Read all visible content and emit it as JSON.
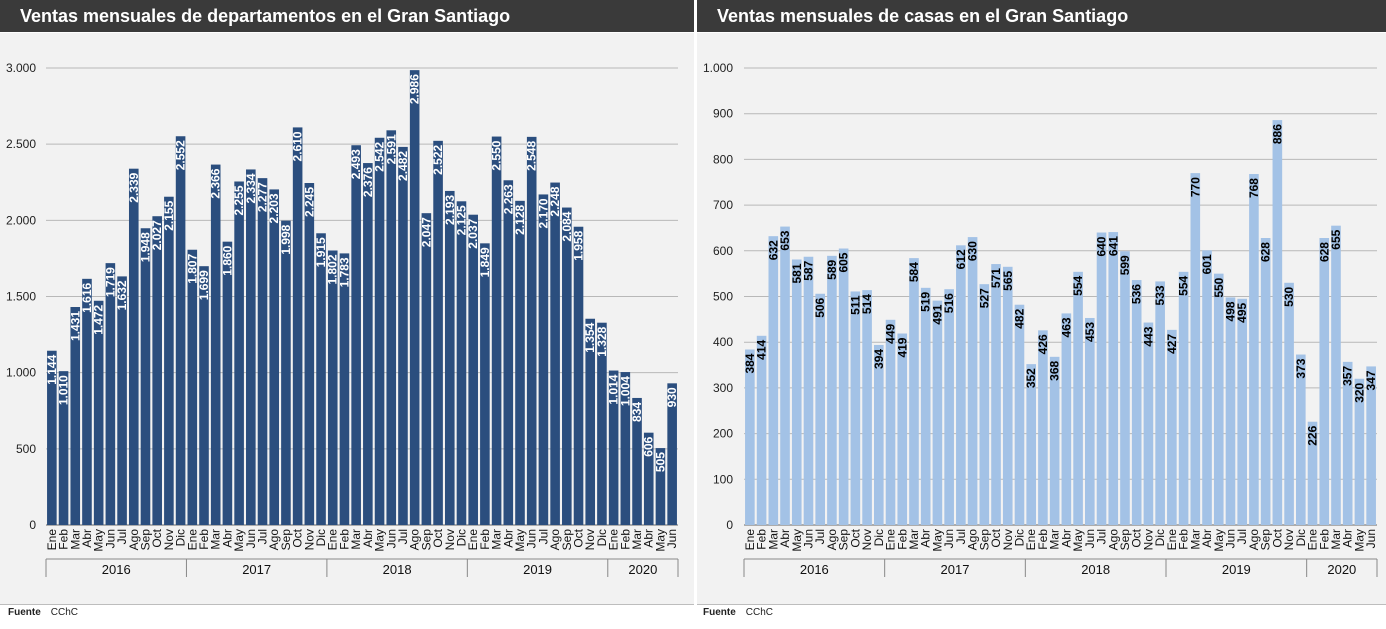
{
  "source": {
    "label": "Fuente",
    "value": "CChC"
  },
  "charts": {
    "left": {
      "title": "Ventas mensuales de departamentos en el Gran Santiago"
    },
    "right": {
      "title": "Ventas mensuales de casas en el Gran Santiago"
    }
  },
  "chart_data": [
    {
      "type": "bar",
      "title": "Ventas mensuales de departamentos en el Gran Santiago",
      "xlabel": "",
      "ylabel": "",
      "ylim": [
        0,
        3000
      ],
      "yticks": [
        0,
        500,
        1000,
        1500,
        2000,
        2500,
        3000
      ],
      "ytick_labels": [
        "0",
        "500",
        "1.000",
        "1.500",
        "2.000",
        "2.500",
        "3.000"
      ],
      "grid": true,
      "bar_color": "#2b4e7e",
      "label_color": "#ffffff",
      "months": [
        "Ene",
        "Feb",
        "Mar",
        "Abr",
        "May",
        "Jun",
        "Jul",
        "Ago",
        "Sep",
        "Oct",
        "Nov",
        "Dic"
      ],
      "years": [
        {
          "label": "2016",
          "months": 12
        },
        {
          "label": "2017",
          "months": 12
        },
        {
          "label": "2018",
          "months": 12
        },
        {
          "label": "2019",
          "months": 12
        },
        {
          "label": "2020",
          "months": 6
        }
      ],
      "values": [
        1144,
        1010,
        1431,
        1616,
        1472,
        1719,
        1632,
        2339,
        1948,
        2027,
        2155,
        2552,
        1807,
        1699,
        2366,
        1860,
        2255,
        2334,
        2277,
        2203,
        1998,
        2610,
        2245,
        1915,
        1802,
        1783,
        2493,
        2376,
        2542,
        2591,
        2482,
        2986,
        2047,
        2522,
        2193,
        2125,
        2037,
        1849,
        2550,
        2263,
        2128,
        2548,
        2170,
        2248,
        2084,
        1958,
        1354,
        1328,
        1014,
        1004,
        834,
        606,
        505,
        930
      ],
      "data_labels": [
        "1.144",
        "1.010",
        "1.431",
        "1.616",
        "1.472",
        "1.719",
        "1.632",
        "2.339",
        "1.948",
        "2.027",
        "2.155",
        "2.552",
        "1.807",
        "1.699",
        "2.366",
        "1.860",
        "2.255",
        "2.334",
        "2.277",
        "2.203",
        "1.998",
        "2.610",
        "2.245",
        "1.915",
        "1.802",
        "1.783",
        "2.493",
        "2.376",
        "2.542",
        "2.591",
        "2.482",
        "2.986",
        "2.047",
        "2.522",
        "2.193",
        "2.125",
        "2.037",
        "1.849",
        "2.550",
        "2.263",
        "2.128",
        "2.548",
        "2.170",
        "2.248",
        "2.084",
        "1.958",
        "1.354",
        "1.328",
        "1.014",
        "1.004",
        "834",
        "606",
        "505",
        "930"
      ]
    },
    {
      "type": "bar",
      "title": "Ventas mensuales de casas en el Gran Santiago",
      "xlabel": "",
      "ylabel": "",
      "ylim": [
        0,
        1000
      ],
      "yticks": [
        0,
        100,
        200,
        300,
        400,
        500,
        600,
        700,
        800,
        900,
        1000
      ],
      "ytick_labels": [
        "0",
        "100",
        "200",
        "300",
        "400",
        "500",
        "600",
        "700",
        "800",
        "900",
        "1.000"
      ],
      "grid": true,
      "bar_color": "#a3c2e6",
      "label_color": "#000000",
      "months": [
        "Ene",
        "Feb",
        "Mar",
        "Abr",
        "May",
        "Jun",
        "Jul",
        "Ago",
        "Sep",
        "Oct",
        "Nov",
        "Dic"
      ],
      "years": [
        {
          "label": "2016",
          "months": 12
        },
        {
          "label": "2017",
          "months": 12
        },
        {
          "label": "2018",
          "months": 12
        },
        {
          "label": "2019",
          "months": 12
        },
        {
          "label": "2020",
          "months": 6
        }
      ],
      "values": [
        384,
        414,
        632,
        653,
        581,
        587,
        506,
        589,
        605,
        511,
        514,
        394,
        449,
        419,
        584,
        519,
        491,
        516,
        612,
        630,
        527,
        571,
        565,
        482,
        352,
        426,
        368,
        463,
        554,
        453,
        640,
        641,
        599,
        536,
        443,
        533,
        427,
        554,
        770,
        601,
        550,
        498,
        495,
        768,
        628,
        886,
        530,
        373,
        226,
        628,
        655,
        357,
        320,
        347
      ],
      "data_labels": [
        "384",
        "414",
        "632",
        "653",
        "581",
        "587",
        "506",
        "589",
        "605",
        "511",
        "514",
        "394",
        "449",
        "419",
        "584",
        "519",
        "491",
        "516",
        "612",
        "630",
        "527",
        "571",
        "565",
        "482",
        "352",
        "426",
        "368",
        "463",
        "554",
        "453",
        "640",
        "641",
        "599",
        "536",
        "443",
        "533",
        "427",
        "554",
        "770",
        "601",
        "550",
        "498",
        "495",
        "768",
        "628",
        "886",
        "530",
        "373",
        "226",
        "628",
        "655",
        "357",
        "320",
        "347"
      ]
    }
  ]
}
